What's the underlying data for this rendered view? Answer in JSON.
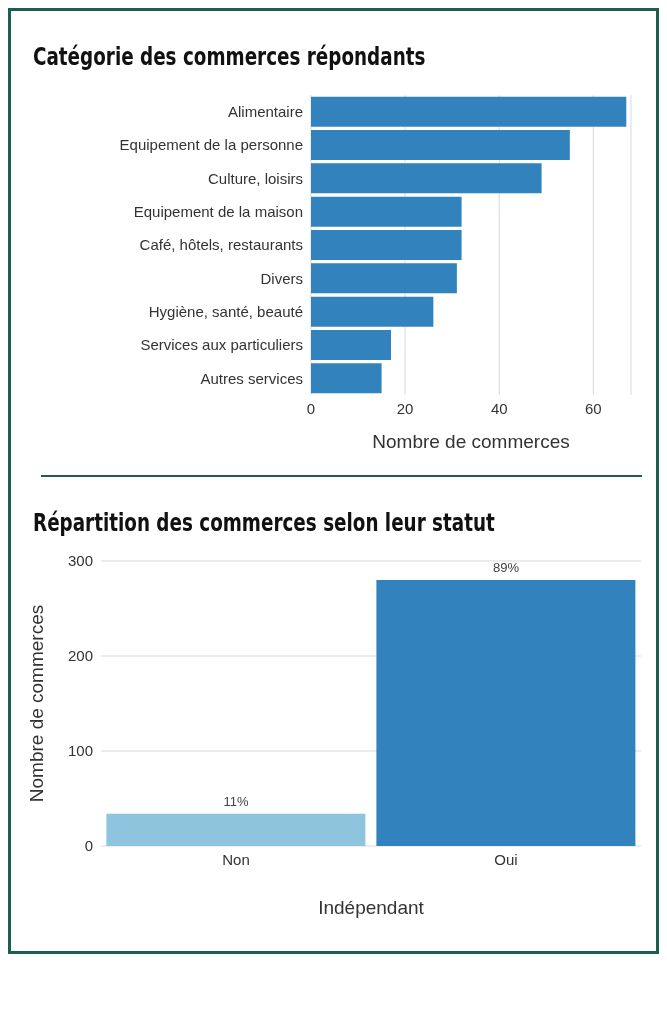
{
  "chart_data": [
    {
      "type": "bar",
      "title": "Catégorie des commerces répondants",
      "orientation": "horizontal",
      "categories": [
        "Alimentaire",
        "Equipement de la personne",
        "Culture, loisirs",
        "Equipement de la maison",
        "Café, hôtels, restaurants",
        "Divers",
        "Hygiène, santé, beauté",
        "Services aux particuliers",
        "Autres services"
      ],
      "values": [
        67,
        55,
        49,
        32,
        32,
        31,
        26,
        17,
        15
      ],
      "color": "#3182bd",
      "xlim": [
        0,
        68
      ],
      "xticks": [
        0,
        20,
        40,
        60
      ],
      "xlabel": "Nombre de commerces",
      "grid": "x",
      "legend": false
    },
    {
      "type": "bar",
      "title": "Répartition des commerces selon leur statut",
      "categories": [
        "Non",
        "Oui"
      ],
      "values": [
        34,
        280
      ],
      "colors": [
        "#8fc4de",
        "#3182bd"
      ],
      "annotations": [
        {
          "text": "11%",
          "x": "Non",
          "y": 34
        },
        {
          "text": "89%",
          "x": "Oui",
          "y": 280
        }
      ],
      "ylim": [
        0,
        300
      ],
      "yticks": [
        0,
        100,
        200,
        300
      ],
      "xlabel": "Indépendant",
      "ylabel": "Nombre de commerces",
      "grid": "y",
      "legend": false
    }
  ]
}
